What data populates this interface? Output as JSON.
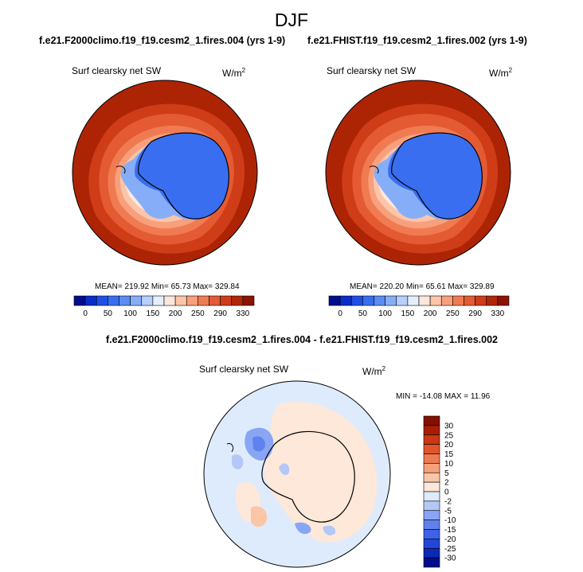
{
  "season": "DJF",
  "top_left": {
    "case": "f.e21.F2000climo.f19_f19.cesm2_1.fires.004 (yrs 1-9)",
    "variable": "Surf clearsky net SW",
    "unit": "W/m",
    "unit_exp": "2",
    "stats": "MEAN= 219.92  Min=  65.73  Max= 329.84"
  },
  "top_right": {
    "case": "f.e21.FHIST.f19_f19.cesm2_1.fires.002 (yrs 1-9)",
    "variable": "Surf clearsky net SW",
    "unit": "W/m",
    "unit_exp": "2",
    "stats": "MEAN= 220.20  Min=  65.61  Max= 329.89"
  },
  "diff": {
    "title": "f.e21.F2000climo.f19_f19.cesm2_1.fires.004 - f.e21.FHIST.f19_f19.cesm2_1.fires.002",
    "variable": "Surf clearsky net SW",
    "unit": "W/m",
    "unit_exp": "2",
    "stats": "MIN = -14.08  MAX =  11.96"
  },
  "abs_colorbar": {
    "colors": [
      "#000e8c",
      "#0a2cc8",
      "#1f4fe6",
      "#3a6ef0",
      "#5a8cf4",
      "#86aef8",
      "#b6cffb",
      "#e4eefd",
      "#fde7dc",
      "#fbc5aa",
      "#f8a07c",
      "#f07b53",
      "#e45a32",
      "#cf3c18",
      "#b02707",
      "#8c1300"
    ],
    "labels": [
      "0",
      "50",
      "100",
      "150",
      "200",
      "250",
      "290",
      "330"
    ]
  },
  "diff_colorbar": {
    "colors": [
      "#000e8c",
      "#0c29b8",
      "#2346d8",
      "#3e62e8",
      "#5f82ef",
      "#89a6f4",
      "#b4c8f8",
      "#deebfc",
      "#fde8d9",
      "#fbc6a6",
      "#f7a17a",
      "#ef7b51",
      "#e2552c",
      "#cb3613",
      "#a81e04",
      "#851000"
    ],
    "labels": [
      "-30",
      "-25",
      "-20",
      "-15",
      "-10",
      "-5",
      "-2",
      "0",
      "2",
      "5",
      "10",
      "15",
      "20",
      "25",
      "30"
    ]
  }
}
